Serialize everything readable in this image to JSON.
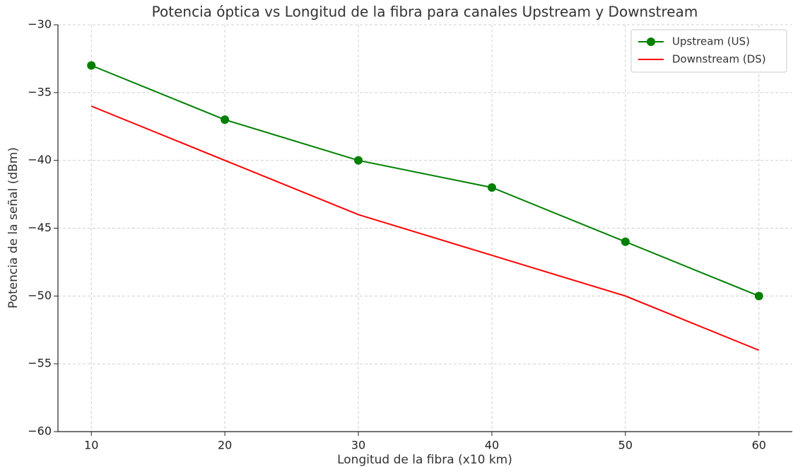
{
  "chart_data": {
    "type": "line",
    "title": "Potencia óptica vs Longitud de la fibra para canales Upstream y Downstream",
    "xlabel": "Longitud de la fibra (x10 km)",
    "ylabel": "Potencia de la señal (dBm)",
    "x": [
      10,
      20,
      30,
      40,
      50,
      60
    ],
    "series": [
      {
        "name": "Upstream (US)",
        "color": "#008000",
        "marker": "o",
        "values": [
          -33,
          -37,
          -40,
          -42,
          -46,
          -50
        ]
      },
      {
        "name": "Downstream (DS)",
        "color": "#ff0000",
        "values": [
          -36,
          -40,
          -44,
          -47,
          -50,
          -54
        ]
      }
    ],
    "xlim": [
      7.5,
      62.5
    ],
    "xticks": [
      10,
      20,
      30,
      40,
      50,
      60
    ],
    "ylim": [
      -60,
      -30
    ],
    "yticks": [
      {
        "value": -60,
        "label": "−60"
      },
      {
        "value": -55,
        "label": "−55"
      },
      {
        "value": -50,
        "label": "−50"
      },
      {
        "value": -45,
        "label": "−45"
      },
      {
        "value": -40,
        "label": "−40"
      },
      {
        "value": -35,
        "label": "−35"
      },
      {
        "value": -30,
        "label": "−30"
      }
    ],
    "grid": true,
    "legend": "upper right"
  }
}
